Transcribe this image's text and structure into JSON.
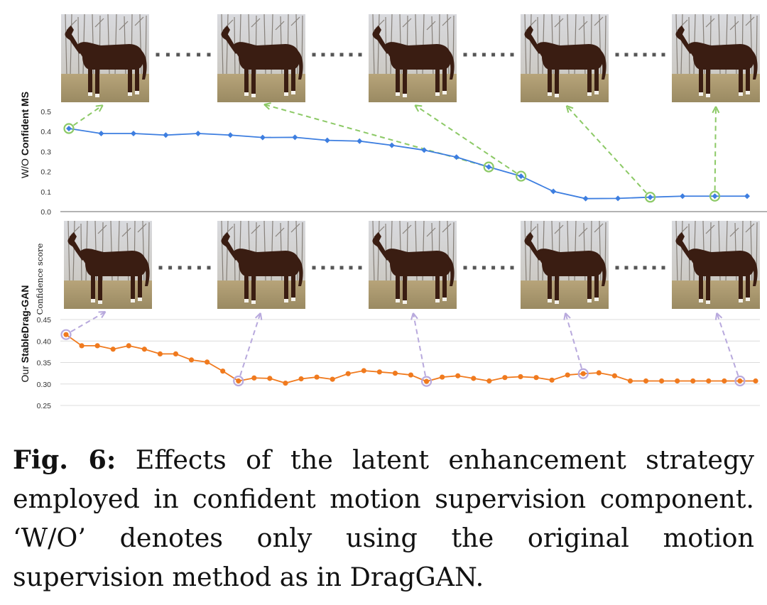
{
  "chart_data": [
    {
      "type": "line",
      "panel": "top",
      "ylabel_prefix": "W/O ",
      "ylabel_bold": "Confident MS",
      "ylim": [
        0.0,
        0.5
      ],
      "yticks": [
        "0.0",
        "0.1",
        "0.2",
        "0.3",
        "0.4",
        "0.5"
      ],
      "grid": false,
      "series": [
        {
          "color": "#3d7ee0",
          "marker": "diamond",
          "x": [
            1,
            2,
            3,
            4,
            5,
            6,
            7,
            8,
            9,
            10,
            11,
            12,
            13,
            14,
            15,
            16,
            17,
            18,
            19,
            20,
            21,
            22
          ],
          "values": [
            0.415,
            0.39,
            0.39,
            0.382,
            0.39,
            0.382,
            0.37,
            0.371,
            0.356,
            0.352,
            0.331,
            0.307,
            0.272,
            0.223,
            0.177,
            0.101,
            0.065,
            0.066,
            0.072,
            0.077,
            0.077,
            0.077
          ]
        }
      ],
      "highlighted_points": [
        1,
        14,
        15,
        19,
        21
      ],
      "highlight_color": "#8cc966",
      "thumbnails": [
        "horse-frame-1",
        "horse-frame-2",
        "horse-frame-3",
        "horse-frame-4",
        "horse-frame-5"
      ],
      "thumbnail_links": [
        [
          1,
          1
        ],
        [
          14,
          2
        ],
        [
          15,
          3
        ],
        [
          19,
          4
        ],
        [
          21,
          5
        ]
      ]
    },
    {
      "type": "line",
      "panel": "bottom",
      "ylabel_prefix": "Our ",
      "ylabel_bold": "StableDrag-GAN",
      "annotation": "Confidence score",
      "ylim": [
        0.25,
        0.45
      ],
      "yticks": [
        "0.25",
        "0.30",
        "0.35",
        "0.40",
        "0.45"
      ],
      "grid": true,
      "series": [
        {
          "color": "#f07a1e",
          "marker": "circle",
          "x": [
            1,
            2,
            3,
            4,
            5,
            6,
            7,
            8,
            9,
            10,
            11,
            12,
            13,
            14,
            15,
            16,
            17,
            18,
            19,
            20,
            21,
            22,
            23,
            24,
            25,
            26,
            27,
            28,
            29,
            30,
            31,
            32,
            33,
            34,
            35,
            36,
            37,
            38,
            39,
            40,
            41,
            42,
            43,
            44,
            45
          ],
          "values": [
            0.415,
            0.389,
            0.389,
            0.381,
            0.389,
            0.381,
            0.37,
            0.37,
            0.356,
            0.351,
            0.33,
            0.307,
            0.314,
            0.313,
            0.302,
            0.312,
            0.316,
            0.311,
            0.324,
            0.331,
            0.328,
            0.325,
            0.321,
            0.306,
            0.316,
            0.319,
            0.313,
            0.307,
            0.315,
            0.317,
            0.315,
            0.309,
            0.321,
            0.324,
            0.326,
            0.319,
            0.307,
            0.307,
            0.307,
            0.307,
            0.307,
            0.307,
            0.307,
            0.307,
            0.307
          ]
        }
      ],
      "highlighted_points": [
        1,
        12,
        24,
        34,
        44
      ],
      "highlight_color": "#b8a9dd",
      "thumbnails": [
        "horse-frame-1",
        "horse-frame-2",
        "horse-frame-3",
        "horse-frame-4",
        "horse-frame-5"
      ],
      "thumbnail_links": [
        [
          1,
          1
        ],
        [
          12,
          2
        ],
        [
          24,
          3
        ],
        [
          34,
          4
        ],
        [
          44,
          5
        ]
      ]
    }
  ],
  "caption": {
    "label": "Fig. 6:",
    "text": " Effects of the latent enhancement strategy employed in confident motion supervision component. ‘W/O’ denotes only using the original motion supervision method as in DragGAN."
  }
}
